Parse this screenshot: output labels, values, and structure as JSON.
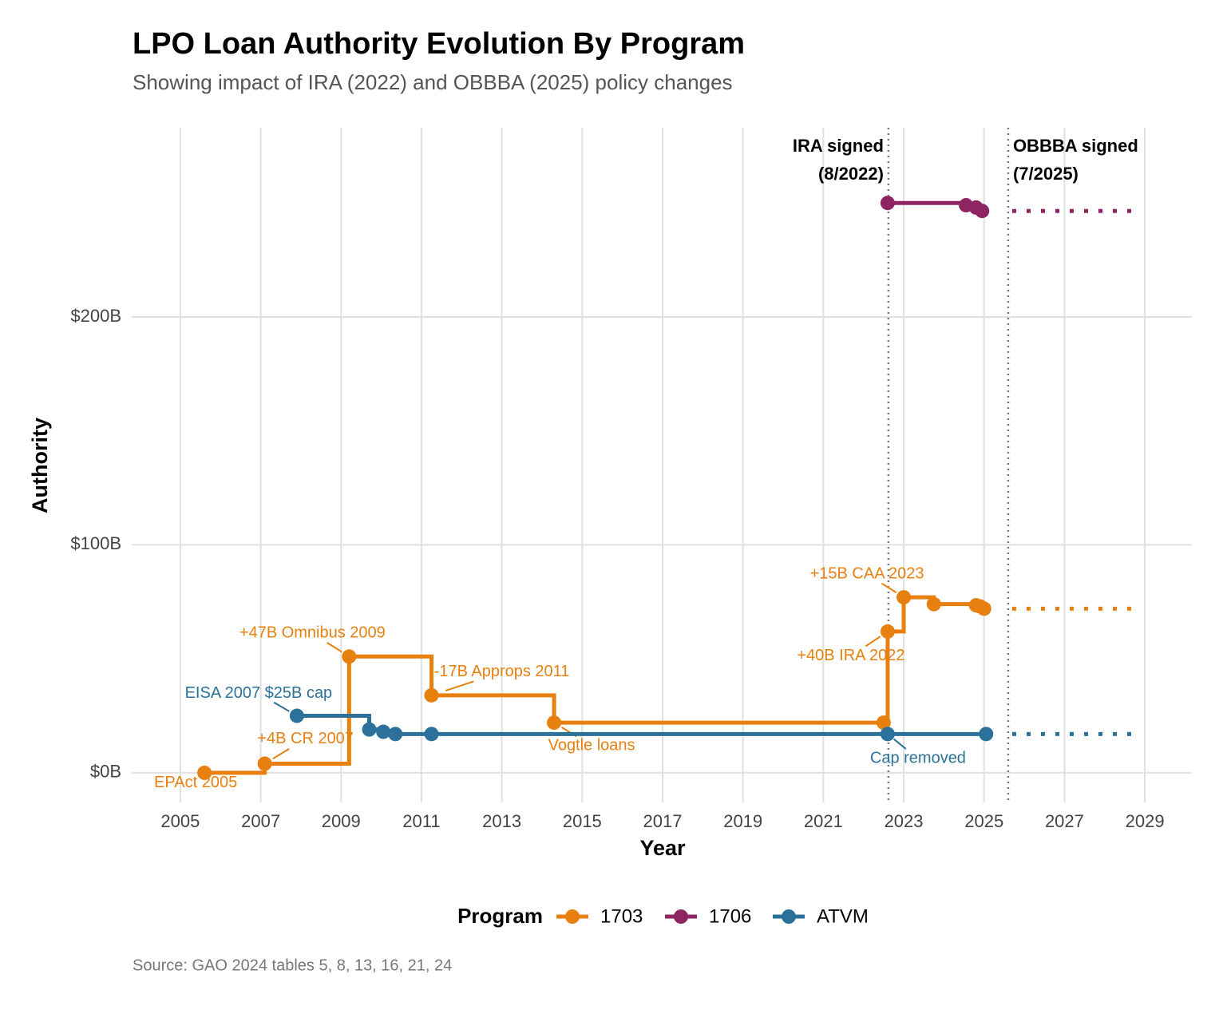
{
  "chart_data": {
    "type": "step",
    "title": "LPO Loan Authority Evolution By Program",
    "subtitle": "Showing impact of IRA (2022) and OBBBA (2025) policy changes",
    "x_label": "Year",
    "y_label": "Authority",
    "caption": "Source: GAO 2024 tables 5, 8, 13, 16, 21, 24",
    "legend_title": "Program",
    "legend_position": "bottom",
    "grid": true,
    "xlim": [
      2003.79,
      2030.17
    ],
    "xticks": [
      2005,
      2007,
      2009,
      2011,
      2013,
      2015,
      2017,
      2019,
      2021,
      2023,
      2025,
      2027,
      2029
    ],
    "ylim": [
      -13,
      283
    ],
    "yticks": [
      {
        "value": 0,
        "label": "$0B"
      },
      {
        "value": 100,
        "label": "$100B"
      },
      {
        "value": 200,
        "label": "$200B"
      }
    ],
    "series": [
      {
        "name": "1703",
        "color": "#e8800f",
        "x": [
          2005.6,
          2007.1,
          2009.2,
          2011.25,
          2014.3,
          2022.5,
          2022.6,
          2023.0,
          2023.75,
          2024.8,
          2024.9,
          2025.0
        ],
        "values": [
          0,
          4,
          51,
          34,
          22,
          22,
          62,
          77,
          74,
          73.5,
          73,
          72
        ],
        "point_labels": [
          "EPAct 2005",
          "+4B CR 2007",
          "+47B Omnibus 2009",
          "-17B Approps 2011",
          "Vogtle loans",
          null,
          "+40B IRA 2022",
          "+15B CAA 2023",
          null,
          null,
          null,
          null
        ],
        "projection": {
          "x": [
            2025.7,
            2028.8
          ],
          "values": [
            72,
            72
          ]
        }
      },
      {
        "name": "1706",
        "color": "#8f2462",
        "x": [
          2022.6,
          2024.55,
          2024.8,
          2024.95
        ],
        "values": [
          250,
          249,
          248,
          246.5
        ],
        "point_labels": [
          null,
          null,
          null,
          null
        ],
        "projection": {
          "x": [
            2025.7,
            2028.8
          ],
          "values": [
            246.5,
            246.5
          ]
        }
      },
      {
        "name": "ATVM",
        "color": "#2b7199",
        "x": [
          2007.9,
          2009.7,
          2010.05,
          2010.35,
          2011.25,
          2022.6,
          2025.05
        ],
        "values": [
          25,
          19,
          18,
          17,
          17,
          17,
          17
        ],
        "point_labels": [
          "EISA 2007 $25B cap",
          null,
          null,
          null,
          null,
          "Cap removed",
          null
        ],
        "projection": {
          "x": [
            2025.7,
            2028.8
          ],
          "values": [
            17,
            17
          ]
        }
      }
    ],
    "reference_lines": [
      {
        "x": 2022.62,
        "label_lines": [
          "IRA signed",
          "(8/2022)"
        ],
        "side": "left"
      },
      {
        "x": 2025.6,
        "label_lines": [
          "OBBBA signed",
          "(7/2025)"
        ],
        "side": "right"
      }
    ]
  }
}
